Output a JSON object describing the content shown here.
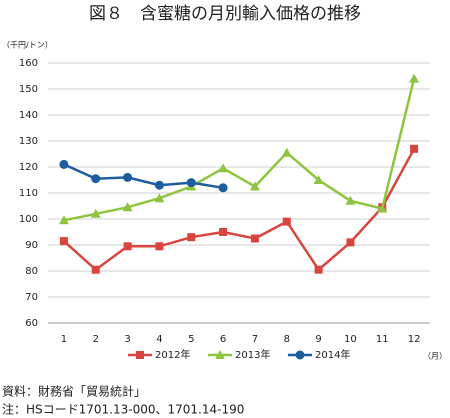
{
  "chart_data": {
    "type": "line",
    "title": "図８　含蜜糖の月別輸入価格の推移",
    "y_axis_label": "（千円/トン）",
    "x_axis_label": "（月）",
    "categories": [
      "1",
      "2",
      "3",
      "4",
      "5",
      "6",
      "7",
      "8",
      "9",
      "10",
      "11",
      "12"
    ],
    "series": [
      {
        "name": "2012年",
        "color": "#d9443f",
        "marker": "square",
        "values": [
          91.5,
          80.5,
          89.5,
          89.5,
          93,
          95,
          92.5,
          99,
          80.5,
          91,
          104.5,
          127
        ]
      },
      {
        "name": "2013年",
        "color": "#8dc440",
        "marker": "triangle",
        "values": [
          99.5,
          102,
          104.5,
          108,
          112.5,
          119.5,
          112.5,
          125.5,
          115,
          107,
          104,
          154
        ]
      },
      {
        "name": "2014年",
        "color": "#1d5c9e",
        "marker": "circle",
        "values": [
          121,
          115.5,
          116,
          113,
          114,
          112,
          null,
          null,
          null,
          null,
          null,
          null
        ]
      }
    ],
    "ylim": [
      60,
      160
    ],
    "yticks": [
      60,
      70,
      80,
      90,
      100,
      110,
      120,
      130,
      140,
      150,
      160
    ],
    "grid": true,
    "legend": "bottom",
    "notes": [
      "資料：財務省「貿易統計」",
      "注：HSコード1701.13-000、1701.14-190"
    ]
  }
}
